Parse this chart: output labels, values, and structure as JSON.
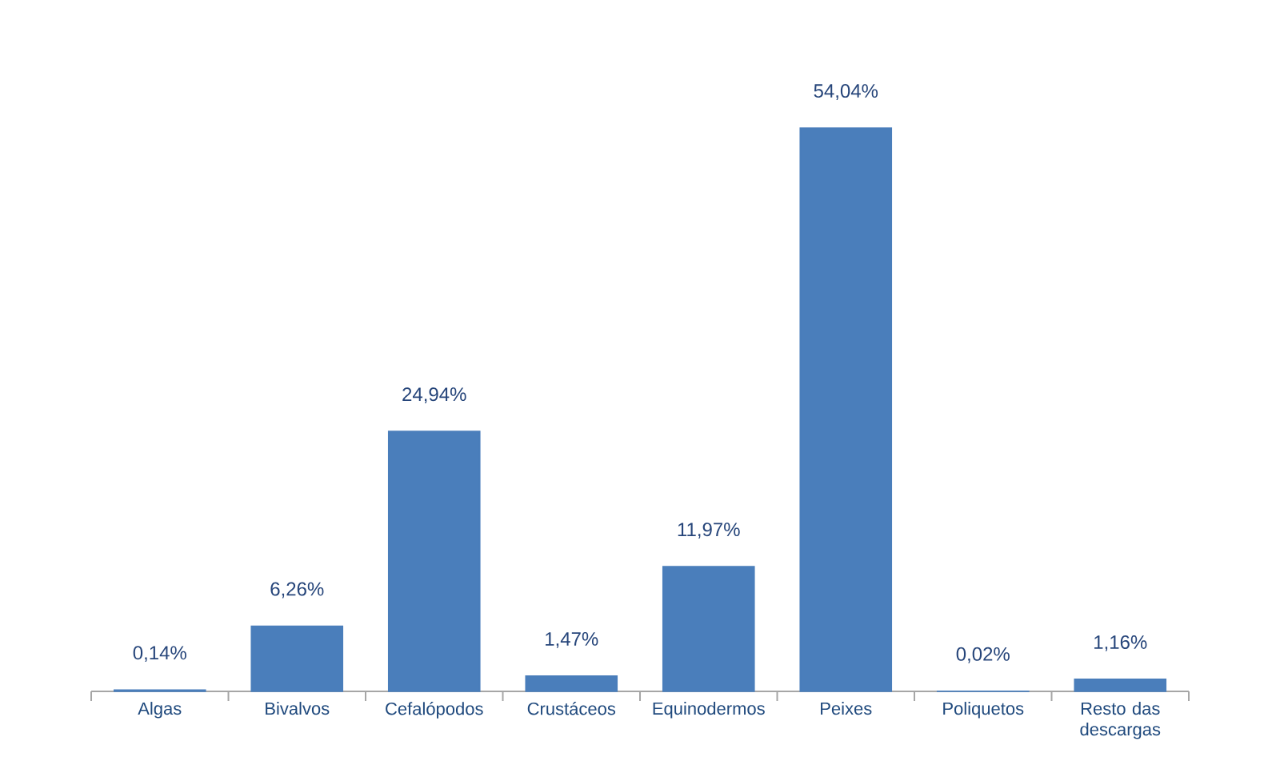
{
  "chart_data": {
    "type": "bar",
    "categories": [
      "Algas",
      "Bivalvos",
      "Cefalópodos",
      "Crustáceos",
      "Equinodermos",
      "Peixes",
      "Poliquetos",
      "Resto das descargas"
    ],
    "values": [
      0.14,
      6.26,
      24.94,
      1.47,
      11.97,
      54.04,
      0.02,
      1.16
    ],
    "color": "#4a7ebb",
    "value_labels": [
      "0,14%",
      "6,26%",
      "24,94%",
      "1,47%",
      "11,97%",
      "54,04%",
      "0,02%",
      "1,16%"
    ]
  }
}
